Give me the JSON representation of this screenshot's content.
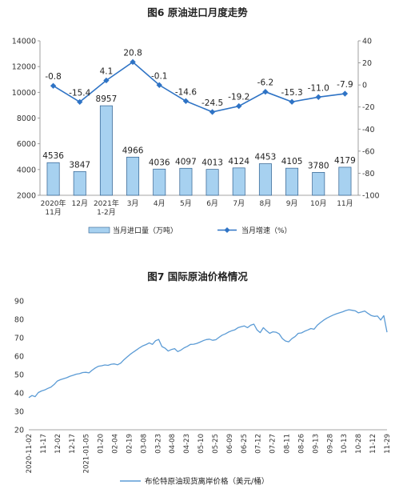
{
  "chart_data": [
    {
      "type": "bar",
      "title": "图6  原油进口月度走势",
      "categories": [
        "2020年\n11月",
        "12月",
        "2021年\n1-2月",
        "3月",
        "4月",
        "5月",
        "6月",
        "7月",
        "8月",
        "9月",
        "10月",
        "11月"
      ],
      "series": [
        {
          "name": "当月进口量（万吨）",
          "type": "bar",
          "axis": "left",
          "values": [
            4536,
            3847,
            8957,
            4966,
            4036,
            4097,
            4013,
            4124,
            4453,
            4105,
            3780,
            4179
          ],
          "color": "#a7d1f0"
        },
        {
          "name": "当月增速（%）",
          "type": "line",
          "axis": "right",
          "values": [
            -0.8,
            -15.4,
            4.1,
            20.8,
            -0.1,
            -14.6,
            -24.5,
            -19.2,
            -6.2,
            -15.3,
            -11.0,
            -7.9
          ],
          "labels": [
            "-0.8",
            "-15.4",
            "4.1",
            "20.8",
            "-0.1",
            "-14.6",
            "-24.5",
            "-19.2",
            "-6.2",
            "-15.3",
            "-11.0",
            "-7.9"
          ],
          "color": "#2e73c5"
        }
      ],
      "ylim_left": [
        2000,
        14000
      ],
      "yticks_left": [
        2000,
        4000,
        6000,
        8000,
        10000,
        12000,
        14000
      ],
      "ylim_right": [
        -100,
        40
      ],
      "yticks_right": [
        -100,
        -80,
        -60,
        -40,
        -20,
        0,
        20,
        40
      ],
      "legend": "bottom"
    },
    {
      "type": "line",
      "title": "图7  国际原油价格情况",
      "series_name": "布伦特原油现货离岸价格（美元/桶）",
      "color": "#5b9bd5",
      "ylim": [
        20,
        90
      ],
      "yticks": [
        20,
        30,
        40,
        50,
        60,
        70,
        80,
        90
      ],
      "xticks": [
        "2020-11-02",
        "11-17",
        "12-02",
        "12-17",
        "2021-01-05",
        "01-20",
        "02-04",
        "02-19",
        "03-08",
        "03-23",
        "04-08",
        "04-23",
        "05-10",
        "05-25",
        "06-09",
        "06-25",
        "07-12",
        "07-27",
        "08-11",
        "08-26",
        "09-13",
        "09-28",
        "10-13",
        "10-28",
        "11-12",
        "11-29"
      ],
      "values": [
        37.5,
        38.6,
        38.0,
        40.2,
        41.1,
        41.6,
        42.5,
        43.2,
        44.6,
        46.5,
        47.2,
        47.8,
        48.3,
        49.1,
        49.6,
        50.2,
        50.5,
        51.1,
        51.2,
        50.9,
        52.4,
        53.6,
        54.5,
        54.8,
        55.2,
        55.0,
        55.6,
        55.8,
        55.3,
        56.2,
        58.0,
        59.5,
        61.0,
        62.2,
        63.4,
        64.6,
        65.6,
        66.3,
        67.2,
        66.4,
        68.4,
        69.1,
        65.2,
        64.3,
        62.8,
        63.6,
        64.1,
        62.5,
        63.3,
        64.5,
        65.3,
        66.4,
        66.5,
        66.9,
        67.6,
        68.4,
        69.0,
        69.2,
        68.6,
        68.9,
        70.2,
        71.4,
        72.1,
        73.1,
        73.8,
        74.3,
        75.5,
        76.0,
        76.4,
        75.5,
        76.8,
        77.4,
        74.2,
        72.8,
        75.5,
        73.8,
        72.4,
        73.2,
        73.0,
        72.1,
        69.5,
        68.2,
        67.8,
        69.5,
        70.6,
        72.4,
        72.6,
        73.5,
        74.2,
        75.0,
        74.6,
        76.8,
        78.2,
        79.5,
        80.6,
        81.5,
        82.3,
        83.0,
        83.5,
        84.1,
        84.8,
        85.2,
        84.9,
        84.6,
        83.5,
        84.0,
        84.5,
        83.2,
        82.1,
        81.6,
        81.8,
        79.6,
        82.0,
        73.0
      ]
    }
  ]
}
